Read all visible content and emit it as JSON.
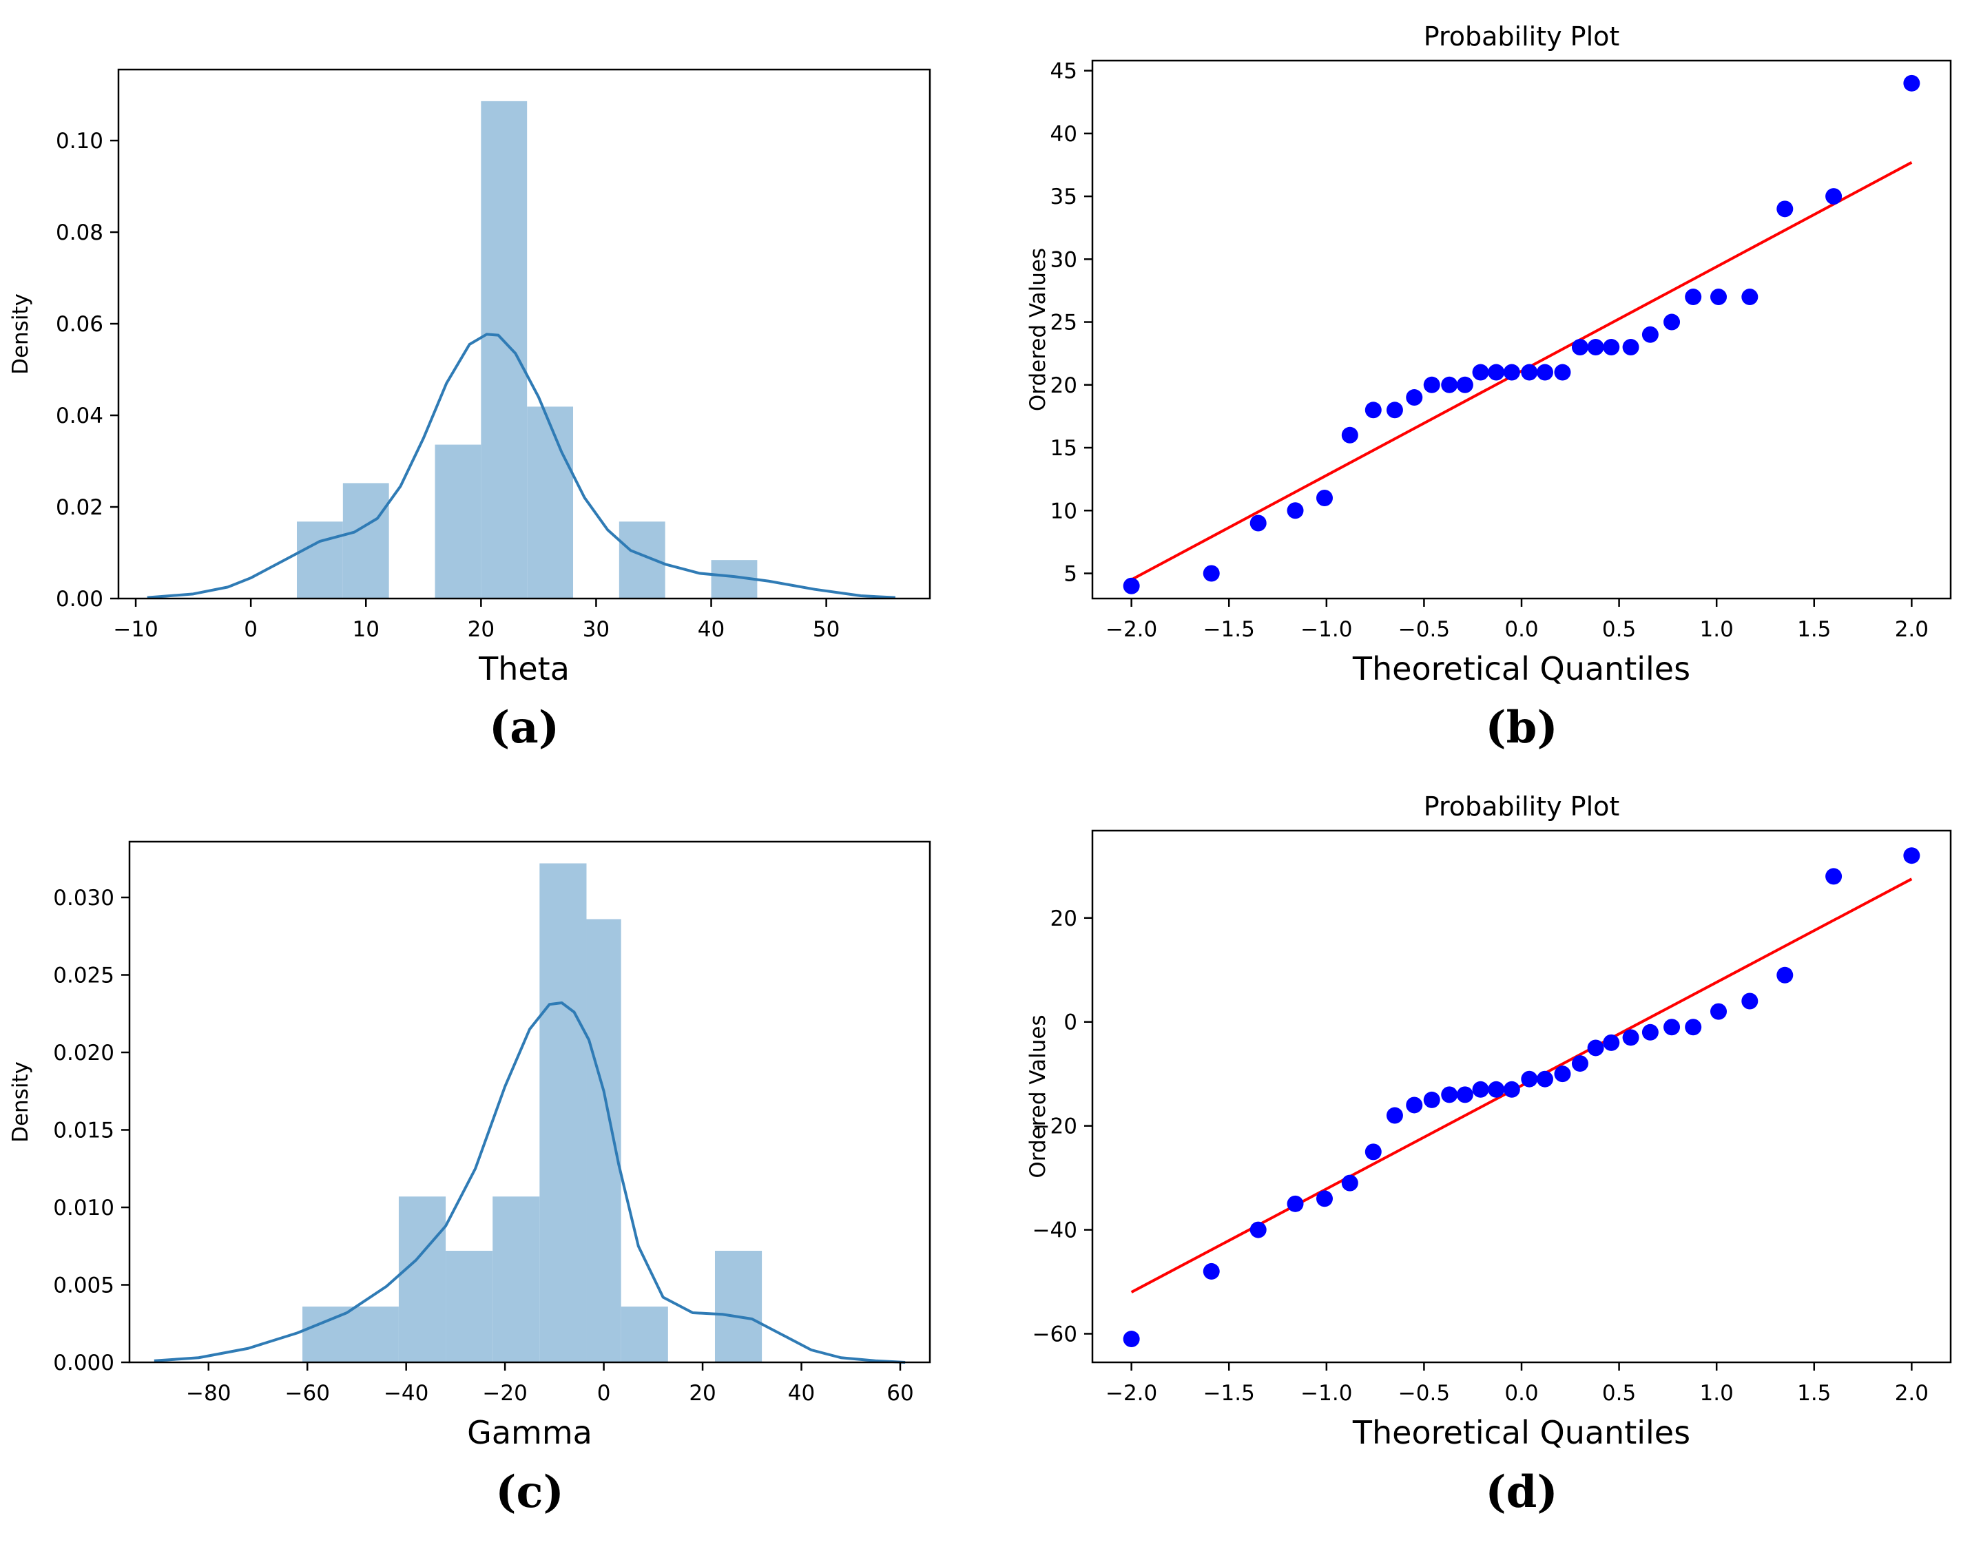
{
  "figure": {
    "panels": [
      "a",
      "b",
      "c",
      "d"
    ]
  },
  "chart_data": [
    {
      "id": "a",
      "type": "bar",
      "subtype": "histogram-with-kde",
      "title": "",
      "xlabel": "Theta",
      "ylabel": "Density",
      "caption": "(a)",
      "xlim": [
        -11.5,
        59
      ],
      "ylim": [
        0,
        0.1155
      ],
      "xticks": [
        -10,
        0,
        10,
        20,
        30,
        40,
        50
      ],
      "xtick_labels": [
        "−10",
        "0",
        "10",
        "20",
        "30",
        "40",
        "50"
      ],
      "yticks": [
        0.0,
        0.02,
        0.04,
        0.06,
        0.08,
        0.1
      ],
      "ytick_labels": [
        "0.00",
        "0.02",
        "0.04",
        "0.06",
        "0.08",
        "0.10"
      ],
      "bins": [
        {
          "x0": 4,
          "x1": 8,
          "height": 0.0168
        },
        {
          "x0": 8,
          "x1": 12,
          "height": 0.0252
        },
        {
          "x0": 12,
          "x1": 16,
          "height": 0.0
        },
        {
          "x0": 16,
          "x1": 20,
          "height": 0.0336
        },
        {
          "x0": 20,
          "x1": 24,
          "height": 0.1086
        },
        {
          "x0": 24,
          "x1": 28,
          "height": 0.0419
        },
        {
          "x0": 28,
          "x1": 32,
          "height": 0.0
        },
        {
          "x0": 32,
          "x1": 36,
          "height": 0.0168
        },
        {
          "x0": 36,
          "x1": 40,
          "height": 0.0
        },
        {
          "x0": 40,
          "x1": 44,
          "height": 0.0084
        }
      ],
      "kde": {
        "x": [
          -9,
          -5,
          -2,
          0,
          3,
          6,
          9,
          11,
          13,
          15,
          17,
          19,
          20.5,
          21.5,
          23,
          25,
          27,
          29,
          31,
          33,
          36,
          39,
          42,
          45,
          49,
          53,
          56
        ],
        "y": [
          0.0002,
          0.001,
          0.0025,
          0.0045,
          0.0085,
          0.0125,
          0.0145,
          0.0175,
          0.0245,
          0.035,
          0.047,
          0.0555,
          0.0577,
          0.0575,
          0.0535,
          0.044,
          0.032,
          0.022,
          0.015,
          0.0105,
          0.0075,
          0.0055,
          0.0048,
          0.0038,
          0.002,
          0.0006,
          0.0002
        ]
      }
    },
    {
      "id": "b",
      "type": "scatter",
      "subtype": "probability-plot",
      "title": "Probability Plot",
      "xlabel": "Theoretical Quantiles",
      "ylabel": "Ordered Values",
      "caption": "(b)",
      "xlim": [
        -2.2,
        2.2
      ],
      "ylim": [
        3,
        45.8
      ],
      "xticks": [
        -2.0,
        -1.5,
        -1.0,
        -0.5,
        0.0,
        0.5,
        1.0,
        1.5,
        2.0
      ],
      "xtick_labels": [
        "−2.0",
        "−1.5",
        "−1.0",
        "−0.5",
        "0.0",
        "0.5",
        "1.0",
        "1.5",
        "2.0"
      ],
      "yticks": [
        5,
        10,
        15,
        20,
        25,
        30,
        35,
        40,
        45
      ],
      "ytick_labels": [
        "5",
        "10",
        "15",
        "20",
        "25",
        "30",
        "35",
        "40",
        "45"
      ],
      "points": {
        "x": [
          -2.0,
          -1.59,
          -1.35,
          -1.16,
          -1.01,
          -0.88,
          -0.76,
          -0.65,
          -0.55,
          -0.46,
          -0.37,
          -0.29,
          -0.21,
          -0.13,
          -0.05,
          0.04,
          0.12,
          0.21,
          0.3,
          0.38,
          0.46,
          0.56,
          0.66,
          0.77,
          0.88,
          1.01,
          1.17,
          1.35,
          1.6,
          2.0
        ],
        "y": [
          4,
          5,
          9,
          10,
          11,
          16,
          18,
          18,
          19,
          20,
          20,
          20,
          21,
          21,
          21,
          21,
          21,
          21,
          23,
          23,
          23,
          23,
          24,
          25,
          27,
          27,
          27,
          34,
          35,
          44
        ]
      },
      "fit_line": {
        "x": [
          -2.0,
          2.0
        ],
        "y": [
          4.5,
          37.7
        ]
      },
      "colors": {
        "points": "#0000ff",
        "line": "#ff0000"
      }
    },
    {
      "id": "c",
      "type": "bar",
      "subtype": "histogram-with-kde",
      "title": "",
      "xlabel": "Gamma",
      "ylabel": "Density",
      "caption": "(c)",
      "xlim": [
        -96,
        66
      ],
      "ylim": [
        0,
        0.0336
      ],
      "xticks": [
        -80,
        -60,
        -40,
        -20,
        0,
        20,
        40,
        60
      ],
      "xtick_labels": [
        "−80",
        "−60",
        "−40",
        "−20",
        "0",
        "20",
        "40",
        "60"
      ],
      "yticks": [
        0.0,
        0.005,
        0.01,
        0.015,
        0.02,
        0.025,
        0.03
      ],
      "ytick_labels": [
        "0.000",
        "0.005",
        "0.010",
        "0.015",
        "0.020",
        "0.025",
        "0.030"
      ],
      "bins": [
        {
          "x0": -61,
          "x1": -41.5,
          "height": 0.0036
        },
        {
          "x0": -41.5,
          "x1": -32,
          "height": 0.0107
        },
        {
          "x0": -32,
          "x1": -22.5,
          "height": 0.0072
        },
        {
          "x0": -22.5,
          "x1": -13,
          "height": 0.0107
        },
        {
          "x0": -13,
          "x1": -3.5,
          "height": 0.0322
        },
        {
          "x0": -3.5,
          "x1": 3.5,
          "height": 0.0286
        },
        {
          "x0": 3.5,
          "x1": 13,
          "height": 0.0036
        },
        {
          "x0": 13,
          "x1": 22.5,
          "height": 0.0
        },
        {
          "x0": 22.5,
          "x1": 32,
          "height": 0.0072
        }
      ],
      "kde": {
        "x": [
          -91,
          -82,
          -72,
          -62,
          -52,
          -44,
          -38,
          -32,
          -26,
          -20,
          -15,
          -11,
          -8.5,
          -6,
          -3,
          0,
          3,
          7,
          12,
          18,
          24,
          30,
          36,
          42,
          48,
          55,
          61
        ],
        "y": [
          0.0001,
          0.0003,
          0.0009,
          0.0019,
          0.0032,
          0.0049,
          0.0066,
          0.0088,
          0.0125,
          0.0178,
          0.0215,
          0.0231,
          0.0232,
          0.0226,
          0.0208,
          0.0175,
          0.0128,
          0.0075,
          0.0042,
          0.0032,
          0.0031,
          0.0028,
          0.0018,
          0.0008,
          0.0003,
          0.0001,
          0.0
        ]
      }
    },
    {
      "id": "d",
      "type": "scatter",
      "subtype": "probability-plot",
      "title": "Probability Plot",
      "xlabel": "Theoretical Quantiles",
      "ylabel": "Ordered Values",
      "caption": "(d)",
      "xlim": [
        -2.2,
        2.2
      ],
      "ylim": [
        -65.5,
        36.8
      ],
      "xticks": [
        -2.0,
        -1.5,
        -1.0,
        -0.5,
        0.0,
        0.5,
        1.0,
        1.5,
        2.0
      ],
      "xtick_labels": [
        "−2.0",
        "−1.5",
        "−1.0",
        "−0.5",
        "0.0",
        "0.5",
        "1.0",
        "1.5",
        "2.0"
      ],
      "yticks": [
        -60,
        -40,
        -20,
        0,
        20
      ],
      "ytick_labels": [
        "−60",
        "−40",
        "−20",
        "0",
        "20"
      ],
      "points": {
        "x": [
          -2.0,
          -1.59,
          -1.35,
          -1.16,
          -1.01,
          -0.88,
          -0.76,
          -0.65,
          -0.55,
          -0.46,
          -0.37,
          -0.29,
          -0.21,
          -0.13,
          -0.05,
          0.04,
          0.12,
          0.21,
          0.3,
          0.38,
          0.46,
          0.56,
          0.66,
          0.77,
          0.88,
          1.01,
          1.17,
          1.35,
          1.6,
          2.0
        ],
        "y": [
          -61,
          -48,
          -40,
          -35,
          -34,
          -31,
          -25,
          -18,
          -16,
          -15,
          -14,
          -14,
          -13,
          -13,
          -13,
          -11,
          -11,
          -10,
          -8,
          -5,
          -4,
          -3,
          -2,
          -1,
          -1,
          2,
          4,
          9,
          28,
          32
        ],
        "fit_line": {
          "x": [
            -2.0,
            2.0
          ],
          "y": [
            -52,
            27.5
          ]
        }
      },
      "fit_line": {
        "x": [
          -2.0,
          2.0
        ],
        "y": [
          -52,
          27.5
        ]
      },
      "colors": {
        "points": "#0000ff",
        "line": "#ff0000"
      }
    }
  ],
  "colors": {
    "hist_fill": "#a3c6e0",
    "kde_line": "#2f7bb5",
    "axes": "#000000",
    "points": "#0000ff",
    "fit_line": "#ff0000"
  }
}
